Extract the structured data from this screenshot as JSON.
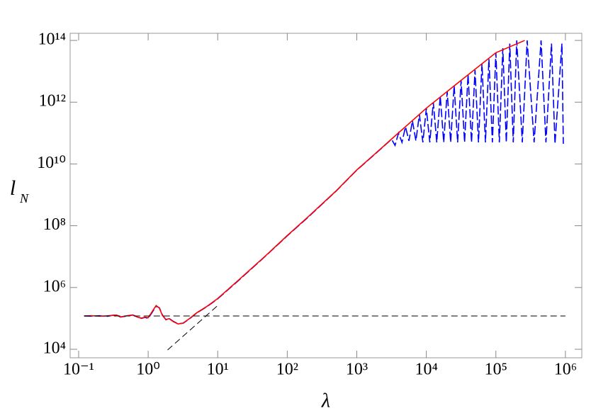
{
  "chart_data": {
    "type": "line",
    "x_label": "λ",
    "y_label": "l",
    "y_label_subscript": "N",
    "log_x": true,
    "log_y": true,
    "xlim": [
      0.0755,
      1720000
    ],
    "ylim": [
      5300,
      170000000000000.0
    ],
    "xticks": [
      {
        "value": 0.1,
        "label": "10⁻¹"
      },
      {
        "value": 1,
        "label": "10⁰"
      },
      {
        "value": 10,
        "label": "10¹"
      },
      {
        "value": 100,
        "label": "10²"
      },
      {
        "value": 1000,
        "label": "10³"
      },
      {
        "value": 10000,
        "label": "10⁴"
      },
      {
        "value": 100000,
        "label": "10⁵"
      },
      {
        "value": 1000000,
        "label": "10⁶"
      }
    ],
    "yticks": [
      {
        "value": 10000,
        "label": "10⁴"
      },
      {
        "value": 1000000,
        "label": "10⁶"
      },
      {
        "value": 100000000,
        "label": "10⁸"
      },
      {
        "value": 10000000000,
        "label": "10¹⁰"
      },
      {
        "value": 1000000000000,
        "label": "10¹²"
      },
      {
        "value": 100000000000000,
        "label": "10¹⁴"
      }
    ],
    "series": [
      {
        "color": "#0000ff",
        "style": "dashed",
        "x": [
          0.12,
          0.15,
          0.2,
          0.25,
          0.3,
          0.35,
          0.4,
          0.5,
          0.6,
          0.7,
          0.8,
          0.9,
          1.0,
          1.15,
          1.3,
          1.45,
          1.6,
          1.8,
          2.0,
          2.3,
          2.7,
          3.2,
          4,
          5,
          7,
          10,
          20,
          50,
          100,
          200,
          500,
          1000,
          2000,
          3162,
          3548,
          3981,
          4467,
          5012,
          5623,
          6310,
          7079,
          7943,
          8913,
          10000,
          11220,
          12589,
          14125,
          15849,
          17783,
          19953,
          22387,
          25119,
          28184,
          31623,
          35481,
          39811,
          44668,
          50119,
          56234,
          63096,
          70795,
          79433,
          89125,
          100000,
          112202,
          125893,
          141254,
          158489,
          177828,
          199526,
          239883,
          281838,
          354813,
          446684,
          524807,
          630957,
          707946,
          891251,
          933254
        ],
        "values": [
          120000,
          118000,
          122000,
          115000,
          125000,
          130000,
          110000,
          120000,
          128000,
          112000,
          100000,
          108000,
          100000,
          160000,
          250000,
          220000,
          130000,
          90000,
          100000,
          80000,
          67000,
          70000,
          100000,
          150000,
          240000,
          430000,
          1700000,
          11000000,
          47000000,
          190000000,
          1300000000,
          6300000000,
          25000000000,
          63000000000,
          40000000000,
          100000000000,
          50000000000,
          160000000000,
          56000000000,
          250000000000,
          56000000000,
          400000000000,
          50000000000,
          630000000000,
          50000000000,
          1000000000000,
          50000000000,
          1600000000000,
          50000000000,
          2200000000000,
          50000000000,
          3500000000000,
          50000000000,
          5000000000000,
          50000000000,
          7900000000000,
          50000000000,
          11000000000000,
          50000000000,
          18000000000000,
          50000000000,
          25000000000000,
          50000000000,
          40000000000000,
          50000000000,
          56000000000000,
          50000000000,
          79000000000000,
          50000000000,
          100000000000000,
          50000000000,
          100000000000000,
          50000000000,
          100000000000000,
          50000000000,
          79000000000000,
          45000000000,
          79000000000000,
          45000000000
        ]
      },
      {
        "color": "#ff0000",
        "style": "solid",
        "x": [
          0.12,
          0.15,
          0.2,
          0.25,
          0.3,
          0.35,
          0.4,
          0.5,
          0.6,
          0.7,
          0.8,
          0.9,
          1.0,
          1.15,
          1.3,
          1.45,
          1.6,
          1.8,
          2.0,
          2.3,
          2.7,
          3.2,
          4,
          5,
          7,
          10,
          20,
          50,
          100,
          200,
          500,
          1000,
          2000,
          3162,
          10000,
          31623,
          100000,
          260000
        ],
        "values": [
          120000,
          122000,
          118000,
          120000,
          124000,
          128000,
          112000,
          122000,
          130000,
          110000,
          102000,
          110000,
          105000,
          170000,
          260000,
          215000,
          125000,
          92000,
          98000,
          78000,
          66000,
          71000,
          102000,
          152000,
          245000,
          440000,
          1750000,
          11200000,
          48000000,
          195000000,
          1320000000,
          6400000000,
          25500000000,
          64000000000,
          640000000000,
          5100000000000,
          40000000000000,
          100000000000000
        ]
      },
      {
        "color": "#000000",
        "style": "dashed",
        "x": [
          0.12,
          1000000
        ],
        "values": [
          120000,
          120000
        ]
      },
      {
        "color": "#000000",
        "style": "dashed",
        "x": [
          1.9,
          10
        ],
        "values": [
          9500,
          260000
        ]
      }
    ]
  }
}
